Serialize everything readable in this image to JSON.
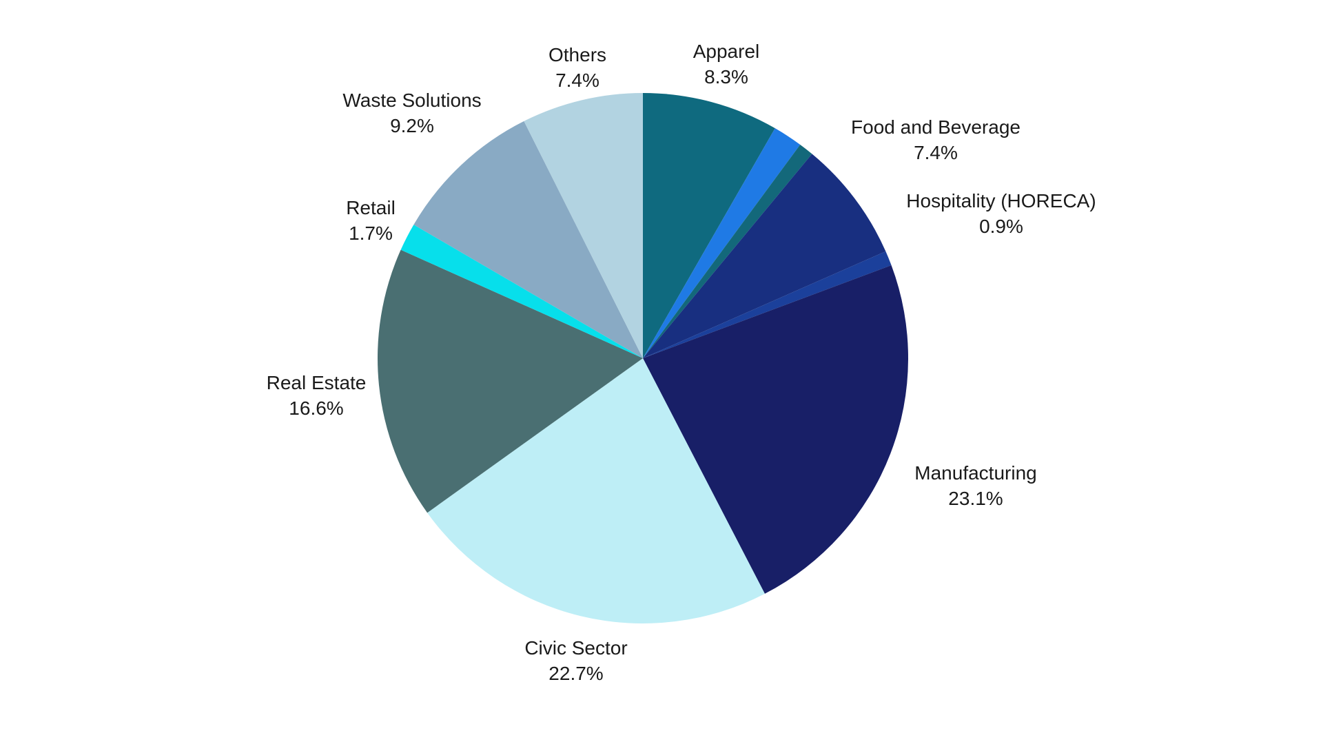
{
  "chart_data": {
    "type": "pie",
    "title": "",
    "start_angle_deg": 0,
    "direction": "clockwise",
    "slices": [
      {
        "label": "Apparel",
        "value": 8.3,
        "value_label": "8.3%",
        "color": "#0f6a7f"
      },
      {
        "label": "",
        "value": 1.8,
        "value_label": "",
        "color": "#1f7ae5"
      },
      {
        "label": "",
        "value": 0.9,
        "value_label": "",
        "color": "#13687a"
      },
      {
        "label": "Food and Beverage",
        "value": 7.4,
        "value_label": "7.4%",
        "color": "#182f80"
      },
      {
        "label": "Hospitality (HORECA)",
        "value": 0.9,
        "value_label": "0.9%",
        "color": "#1b409b"
      },
      {
        "label": "Manufacturing",
        "value": 23.1,
        "value_label": "23.1%",
        "color": "#181f67"
      },
      {
        "label": "Civic Sector",
        "value": 22.7,
        "value_label": "22.7%",
        "color": "#beeef6"
      },
      {
        "label": "Real Estate",
        "value": 16.6,
        "value_label": "16.6%",
        "color": "#4a6f72"
      },
      {
        "label": "Retail",
        "value": 1.7,
        "value_label": "1.7%",
        "color": "#07dfeb"
      },
      {
        "label": "Waste Solutions",
        "value": 9.2,
        "value_label": "9.2%",
        "color": "#89aac4"
      },
      {
        "label": "Others",
        "value": 7.4,
        "value_label": "7.4%",
        "color": "#b2d3e1"
      }
    ]
  }
}
